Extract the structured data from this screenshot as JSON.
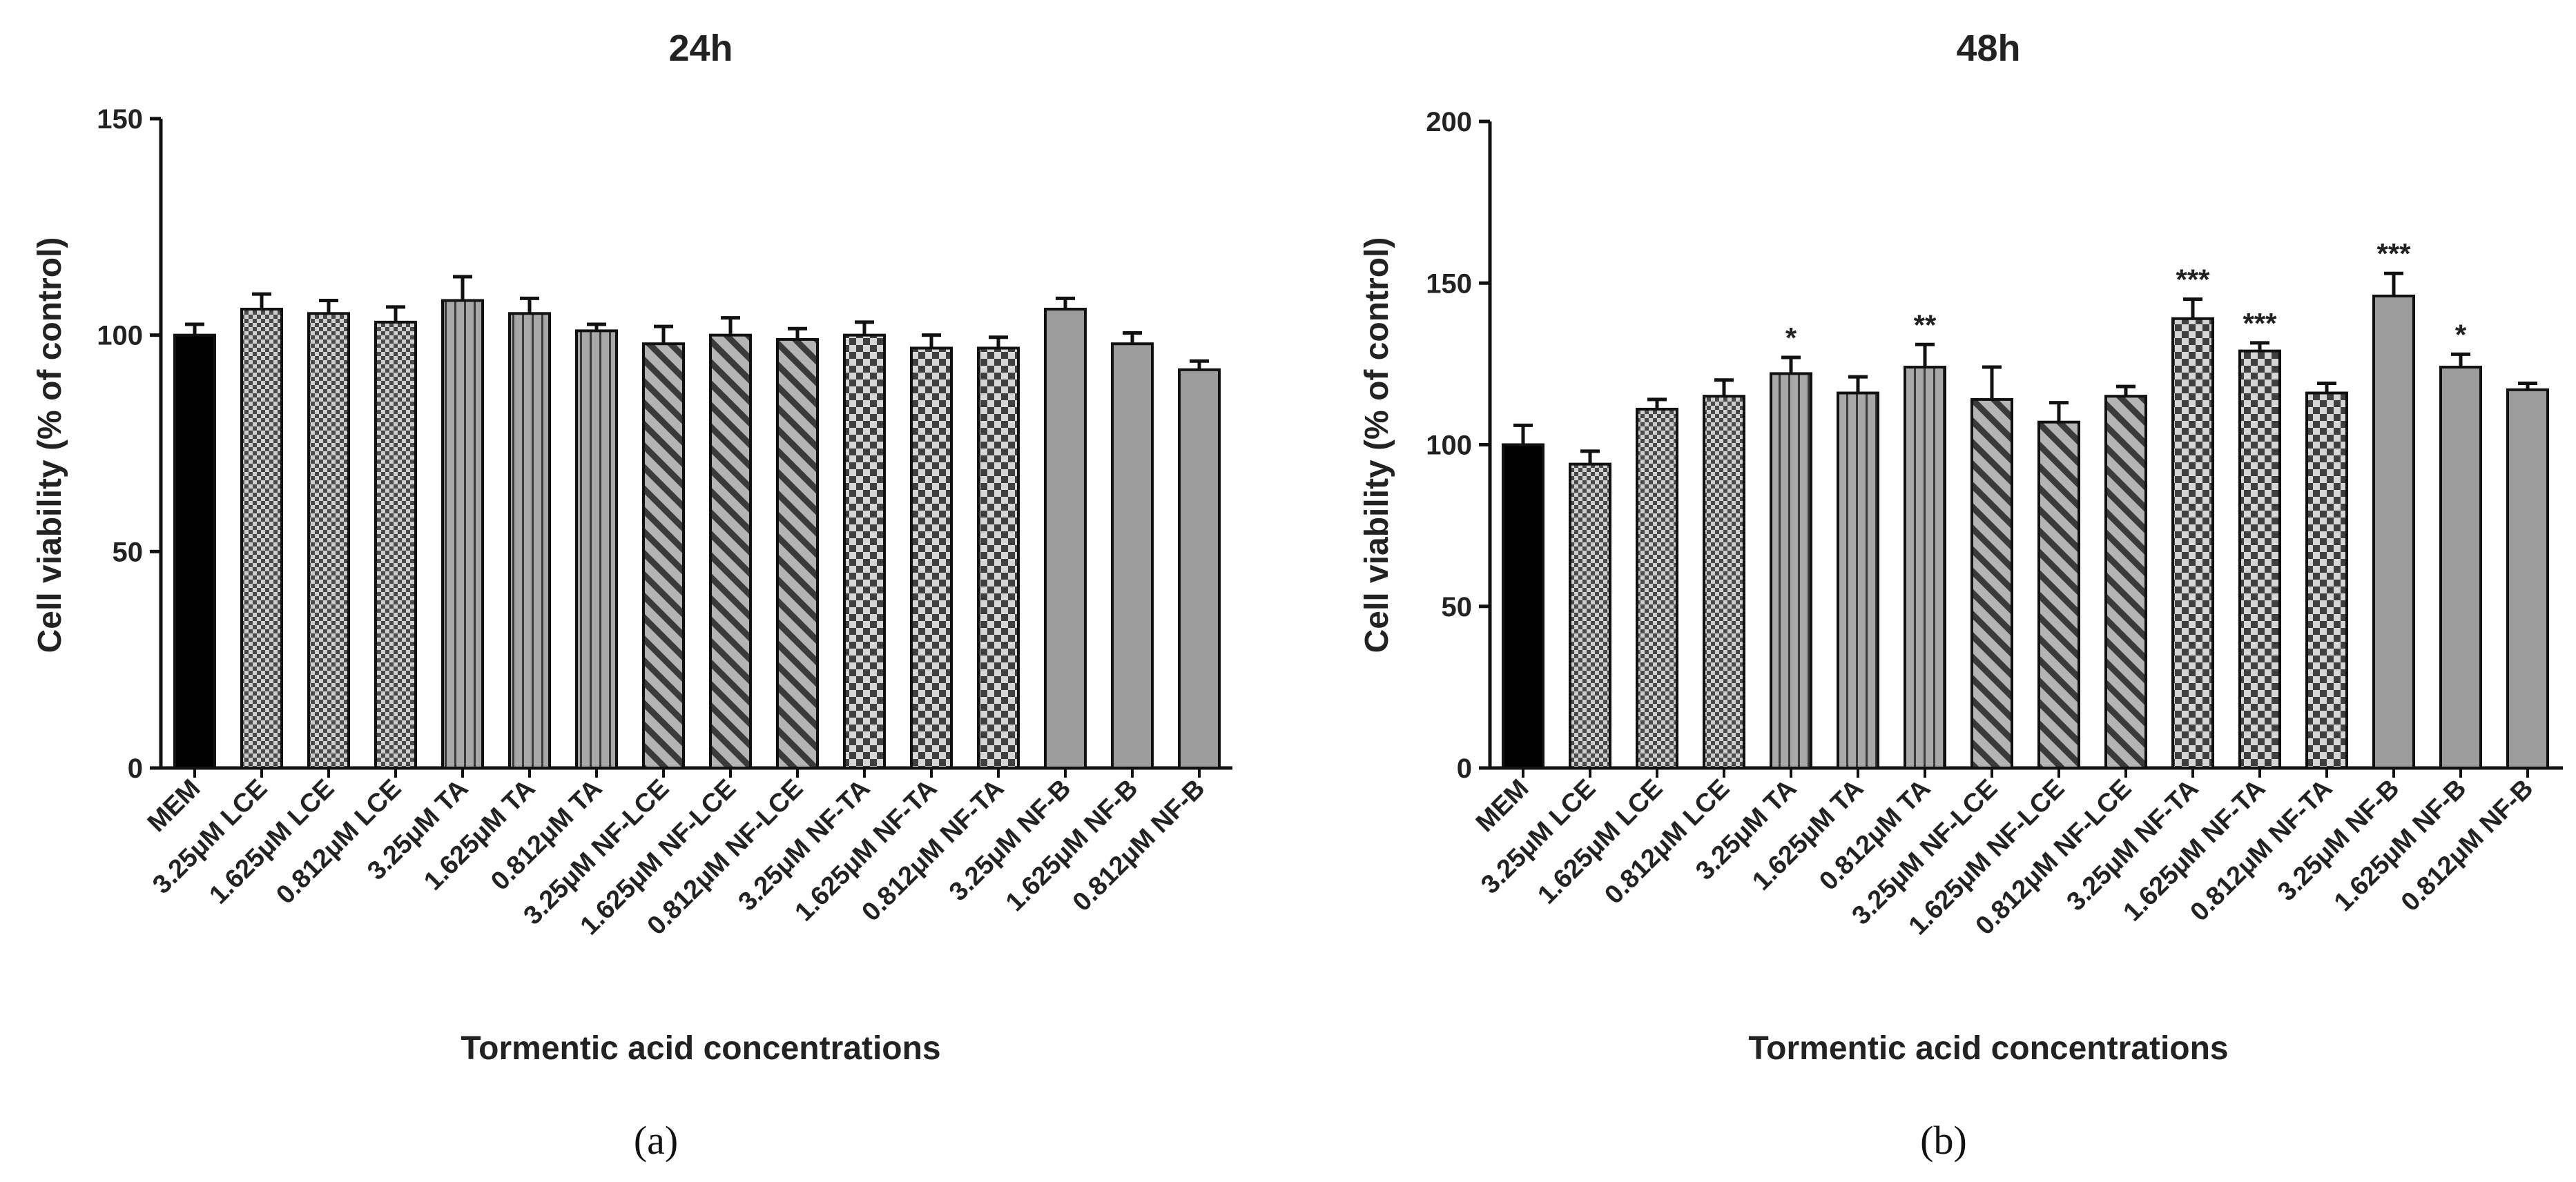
{
  "figure": {
    "panel_labels": [
      "(a)",
      "(b)"
    ]
  },
  "colors": {
    "control_bar": "#000000",
    "treatment_bar": "#9c9c9c",
    "checker_dark": "#4a4a4a",
    "checker_light": "#cfcfcf",
    "stroke": "#111111",
    "text": "#222222"
  },
  "chart_data": [
    {
      "type": "bar",
      "title": "24h",
      "xlabel": "Tormentic acid concentrations",
      "ylabel": "Cell viability (% of control)",
      "ylim": [
        0,
        150
      ],
      "yticks": [
        0,
        50,
        100,
        150
      ],
      "categories": [
        "MEM",
        "3.25μM LCE",
        "1.625μM LCE",
        "0.812μM LCE",
        "3.25μM TA",
        "1.625μM TA",
        "0.812μM TA",
        "3.25μM NF-LCE",
        "1.625μM NF-LCE",
        "0.812μM NF-LCE",
        "3.25μM NF-TA",
        "1.625μM NF-TA",
        "0.812μM NF-TA",
        "3.25μM NF-B",
        "1.625μM NF-B",
        "0.812μM NF-B"
      ],
      "values": [
        100,
        106,
        105,
        103,
        108,
        105,
        101,
        98,
        100,
        99,
        100,
        97,
        97,
        106,
        98,
        92
      ],
      "errors": [
        2.5,
        3.5,
        3,
        3.5,
        5.5,
        3.5,
        1.5,
        4,
        4,
        2.5,
        3,
        3,
        2.5,
        2.5,
        2.5,
        2
      ],
      "patterns": [
        "solid-black",
        "checker",
        "checker",
        "checker",
        "vertical",
        "vertical",
        "vertical",
        "diagonal-back",
        "diagonal-back",
        "diagonal-back",
        "checker-coarse",
        "checker-coarse",
        "checker-coarse",
        "plain",
        "plain",
        "plain"
      ],
      "significance": [
        "",
        "",
        "",
        "",
        "",
        "",
        "",
        "",
        "",
        "",
        "",
        "",
        "",
        "",
        "",
        ""
      ]
    },
    {
      "type": "bar",
      "title": "48h",
      "xlabel": "Tormentic acid concentrations",
      "ylabel": "Cell viability (% of control)",
      "ylim": [
        0,
        200
      ],
      "yticks": [
        0,
        50,
        100,
        150,
        200
      ],
      "categories": [
        "MEM",
        "3.25μM LCE",
        "1.625μM LCE",
        "0.812μM LCE",
        "3.25μM TA",
        "1.625μM TA",
        "0.812μM TA",
        "3.25μM NF-LCE",
        "1.625μM NF-LCE",
        "0.812μM NF-LCE",
        "3.25μM NF-TA",
        "1.625μM NF-TA",
        "0.812μM NF-TA",
        "3.25μM NF-B",
        "1.625μM NF-B",
        "0.812μM NF-B"
      ],
      "values": [
        100,
        94,
        111,
        115,
        122,
        116,
        124,
        114,
        107,
        115,
        139,
        129,
        116,
        146,
        124,
        117
      ],
      "errors": [
        6,
        4,
        3,
        5,
        5,
        5,
        7,
        10,
        6,
        3,
        6,
        2.5,
        3,
        7,
        4,
        2
      ],
      "patterns": [
        "solid-black",
        "checker",
        "checker",
        "checker",
        "vertical",
        "vertical",
        "vertical",
        "diagonal-back",
        "diagonal-back",
        "diagonal-back",
        "checker-coarse",
        "checker-coarse",
        "checker-coarse",
        "plain",
        "plain",
        "plain"
      ],
      "significance": [
        "",
        "",
        "",
        "",
        "*",
        "",
        "**",
        "",
        "",
        "",
        "***",
        "***",
        "",
        "***",
        "*",
        ""
      ]
    }
  ]
}
